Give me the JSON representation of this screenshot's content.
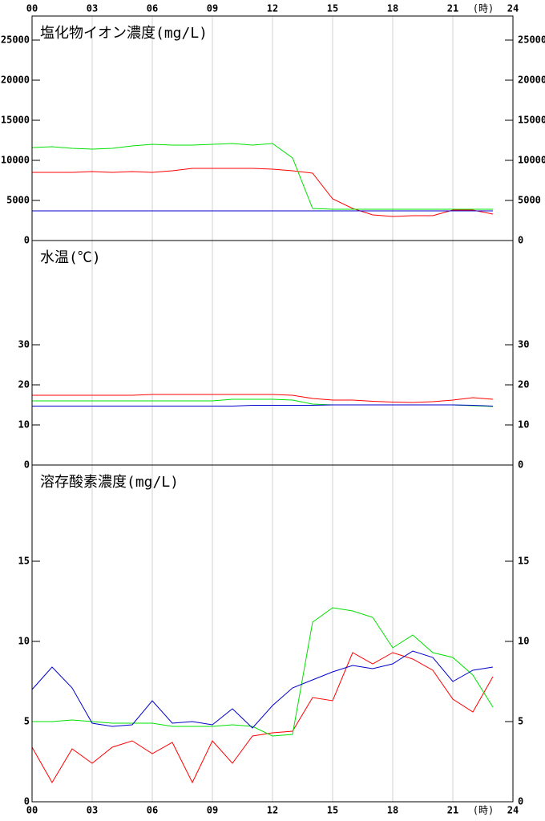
{
  "x_axis": {
    "xlim": [
      0,
      24
    ],
    "unit": "(時)",
    "xticks": [
      {
        "value": 0,
        "label": "00"
      },
      {
        "value": 3,
        "label": "03"
      },
      {
        "value": 6,
        "label": "06"
      },
      {
        "value": 9,
        "label": "09"
      },
      12,
      15,
      18,
      21,
      24
    ]
  },
  "chart_data": [
    {
      "type": "line",
      "title": "塩化物イオン濃度(mg/L)",
      "ylim": [
        0,
        28000
      ],
      "yticks": [
        0,
        5000,
        10000,
        15000,
        20000,
        25000
      ],
      "x": [
        0,
        1,
        2,
        3,
        4,
        5,
        6,
        7,
        8,
        9,
        10,
        11,
        12,
        13,
        14,
        15,
        16,
        17,
        18,
        19,
        20,
        21,
        22,
        23
      ],
      "series": [
        {
          "color": "#ff0000",
          "values": [
            8500,
            8500,
            8500,
            8600,
            8500,
            8600,
            8500,
            8700,
            9000,
            9000,
            9000,
            9000,
            8900,
            8700,
            8400,
            5200,
            4000,
            3200,
            3000,
            3100,
            3100,
            3800,
            3800,
            3300
          ]
        },
        {
          "color": "#00e000",
          "values": [
            11600,
            11700,
            11500,
            11400,
            11500,
            11800,
            12000,
            11900,
            11900,
            12000,
            12100,
            11900,
            12100,
            10300,
            4000,
            3900,
            3900,
            3900,
            3900,
            3900,
            3900,
            3900,
            3900,
            3900
          ]
        },
        {
          "color": "#0000cc",
          "values": [
            3700,
            3700,
            3700,
            3700,
            3700,
            3700,
            3700,
            3700,
            3700,
            3700,
            3700,
            3700,
            3700,
            3700,
            3700,
            3700,
            3700,
            3700,
            3700,
            3700,
            3700,
            3700,
            3700,
            3700
          ]
        }
      ]
    },
    {
      "type": "line",
      "title": "水温(℃)",
      "ylim": [
        0,
        56
      ],
      "yticks": [
        0,
        10,
        20,
        30
      ],
      "x": [
        0,
        1,
        2,
        3,
        4,
        5,
        6,
        7,
        8,
        9,
        10,
        11,
        12,
        13,
        14,
        15,
        16,
        17,
        18,
        19,
        20,
        21,
        22,
        23
      ],
      "series": [
        {
          "color": "#ff0000",
          "values": [
            17.4,
            17.4,
            17.4,
            17.4,
            17.4,
            17.4,
            17.6,
            17.6,
            17.6,
            17.6,
            17.6,
            17.6,
            17.6,
            17.4,
            16.6,
            16.2,
            16.2,
            15.9,
            15.7,
            15.6,
            15.8,
            16.2,
            16.8,
            16.4
          ]
        },
        {
          "color": "#00e000",
          "values": [
            16.0,
            16.0,
            16.0,
            16.0,
            16.0,
            16.0,
            16.0,
            16.0,
            16.0,
            16.0,
            16.4,
            16.4,
            16.4,
            16.2,
            15.2,
            15.0,
            15.0,
            15.0,
            15.0,
            15.0,
            15.0,
            15.0,
            14.8,
            14.6
          ]
        },
        {
          "color": "#0000cc",
          "values": [
            14.7,
            14.7,
            14.7,
            14.7,
            14.7,
            14.7,
            14.7,
            14.7,
            14.7,
            14.7,
            14.7,
            14.9,
            14.9,
            14.9,
            14.9,
            15.0,
            15.0,
            15.0,
            15.0,
            15.0,
            15.0,
            15.0,
            14.9,
            14.7
          ]
        }
      ]
    },
    {
      "type": "line",
      "title": "溶存酸素濃度(mg/L)",
      "ylim": [
        0,
        21
      ],
      "yticks": [
        0,
        5,
        10,
        15
      ],
      "x": [
        0,
        1,
        2,
        3,
        4,
        5,
        6,
        7,
        8,
        9,
        10,
        11,
        12,
        13,
        14,
        15,
        16,
        17,
        18,
        19,
        20,
        21,
        22,
        23
      ],
      "series": [
        {
          "color": "#ff0000",
          "values": [
            3.4,
            1.2,
            3.3,
            2.4,
            3.4,
            3.8,
            3.0,
            3.7,
            1.2,
            3.8,
            2.4,
            4.1,
            4.3,
            4.4,
            6.5,
            6.3,
            9.3,
            8.6,
            9.3,
            8.9,
            8.2,
            6.4,
            5.6,
            7.8
          ]
        },
        {
          "color": "#00e000",
          "values": [
            5.0,
            5.0,
            5.1,
            5.0,
            4.9,
            4.9,
            4.9,
            4.7,
            4.7,
            4.7,
            4.8,
            4.7,
            4.1,
            4.2,
            11.2,
            12.1,
            11.9,
            11.5,
            9.6,
            10.4,
            9.3,
            9.0,
            7.9,
            5.9
          ]
        },
        {
          "color": "#0000cc",
          "values": [
            7.0,
            8.4,
            7.1,
            4.9,
            4.7,
            4.8,
            6.3,
            4.9,
            5.0,
            4.8,
            5.8,
            4.6,
            6.0,
            7.1,
            7.6,
            8.1,
            8.5,
            8.3,
            8.6,
            9.4,
            9.0,
            7.5,
            8.2,
            8.4
          ]
        }
      ]
    }
  ]
}
